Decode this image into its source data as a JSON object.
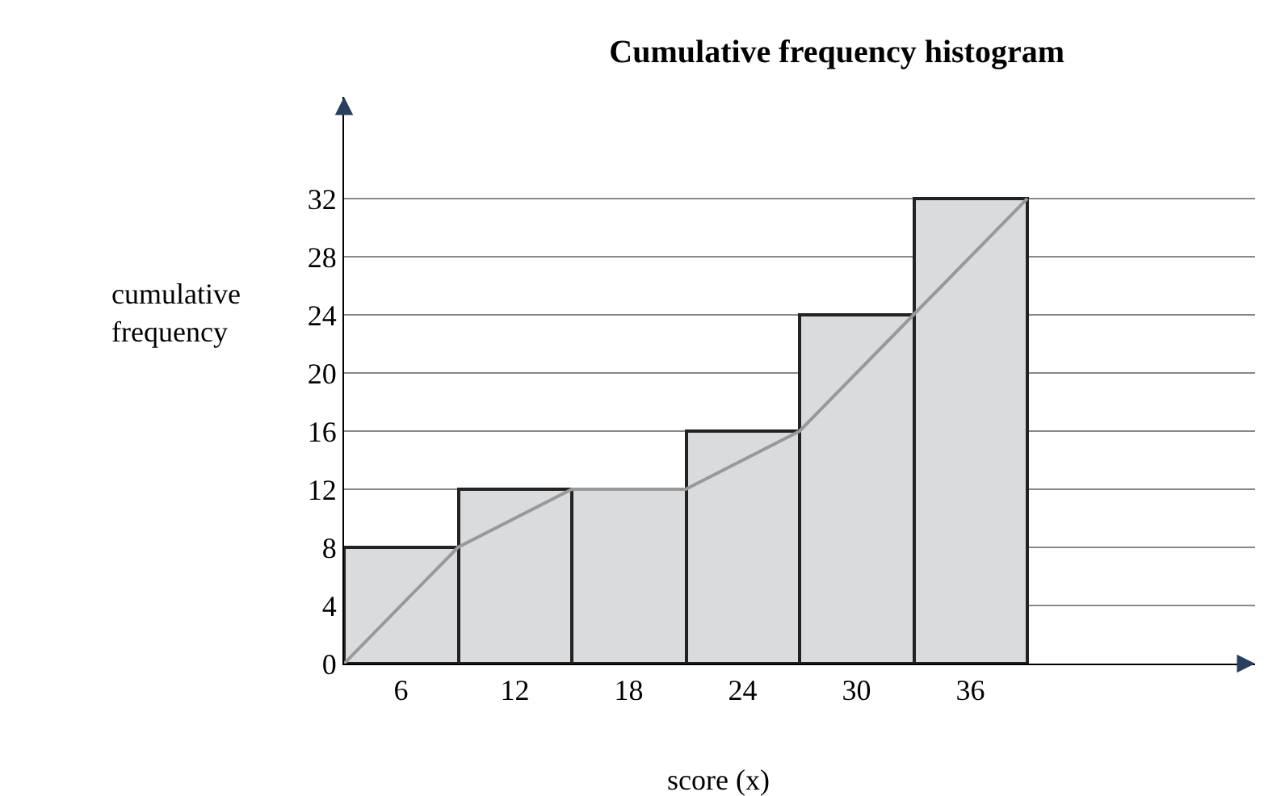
{
  "chart_data": {
    "type": "histogram",
    "title": "Cumulative frequency histogram",
    "xlabel": "score (x)",
    "ylabel": "cumulative frequency",
    "bins": [
      3,
      9,
      15,
      21,
      27,
      33,
      39
    ],
    "values": [
      8,
      12,
      12,
      16,
      24,
      32
    ],
    "color": "#dadbdd",
    "series": [
      {
        "type": "line",
        "x": [
          3,
          9,
          15,
          21,
          27,
          33,
          39
        ],
        "values": [
          0,
          8,
          12,
          12,
          16,
          24,
          32
        ],
        "color": "#999999"
      }
    ],
    "xlim": [
      3,
      51
    ],
    "xticks": [
      6,
      12,
      18,
      24,
      30,
      36
    ],
    "ylim": [
      0,
      39
    ],
    "yticks": [
      0,
      4,
      8,
      12,
      16,
      20,
      24,
      28,
      32
    ],
    "grid": "y"
  }
}
